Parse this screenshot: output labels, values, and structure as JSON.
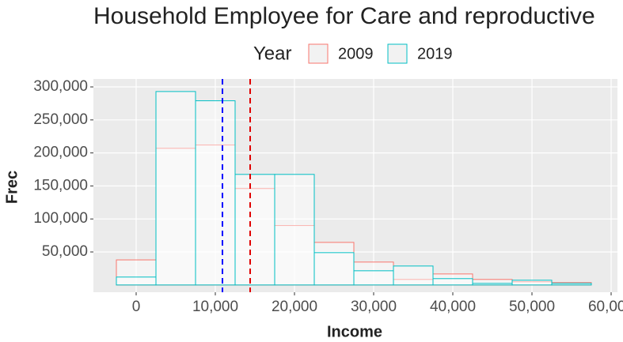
{
  "chart_data": {
    "type": "histogram",
    "title": "Household Employee for Care and reproductive",
    "x_label": "Income",
    "y_label": "Frec",
    "legend_title": "Year",
    "bins": [
      -2500,
      2500,
      7500,
      12500,
      17500,
      22500,
      27500,
      32500,
      37500,
      42500,
      47500,
      52500,
      57500
    ],
    "series": [
      {
        "name": "2009",
        "color": "#f8766d",
        "values": [
          38000,
          207000,
          212000,
          146000,
          90000,
          64500,
          34700,
          8400,
          16700,
          8400,
          4800,
          3600
        ]
      },
      {
        "name": "2019",
        "color": "#00bfc4",
        "values": [
          12000,
          293000,
          279000,
          167500,
          167500,
          49000,
          21500,
          28700,
          9600,
          2400,
          7200,
          2400
        ]
      }
    ],
    "vlines": [
      {
        "value": 10900,
        "color": "#0000ff"
      },
      {
        "value": 14400,
        "color": "#e00000"
      }
    ],
    "xlim": [
      -5400,
      60800
    ],
    "ylim": [
      -11000,
      312000
    ],
    "xticks": [
      0,
      {
        "value": 10000,
        "label": "10,000"
      },
      {
        "value": 20000,
        "label": "20,000"
      },
      {
        "value": 30000,
        "label": "30,000"
      },
      {
        "value": 40000,
        "label": "40,000"
      },
      {
        "value": 50000,
        "label": "50,000"
      },
      {
        "value": 60000,
        "label": "60,000"
      }
    ],
    "yticks": [
      {
        "value": 50000,
        "label": "50,000"
      },
      {
        "value": 100000,
        "label": "100,000"
      },
      {
        "value": 150000,
        "label": "150,000"
      },
      {
        "value": 200000,
        "label": "200,000"
      },
      {
        "value": 250000,
        "label": "250,000"
      },
      {
        "value": 300000,
        "label": "300,000"
      }
    ],
    "grid": true
  }
}
